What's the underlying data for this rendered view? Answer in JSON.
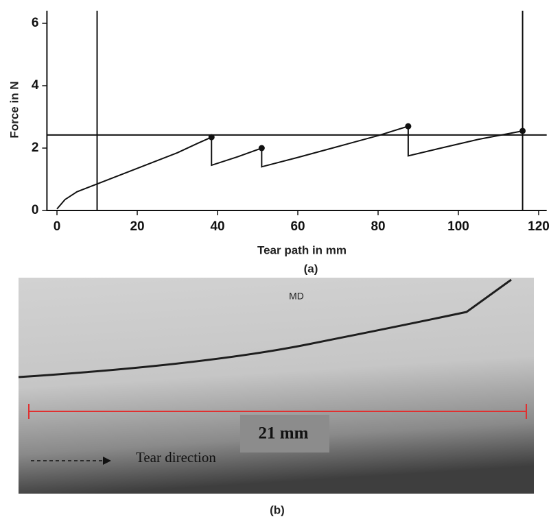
{
  "chart_data": {
    "type": "line",
    "xlabel": "Tear path in mm",
    "ylabel": "Force in N",
    "x": [
      0,
      2,
      5,
      10,
      15,
      20,
      25,
      30,
      35,
      38.5,
      38.5,
      45,
      51,
      51,
      60,
      70,
      80,
      87.5,
      87.5,
      95,
      105,
      116
    ],
    "values": [
      0.05,
      0.35,
      0.6,
      0.85,
      1.1,
      1.35,
      1.6,
      1.85,
      2.15,
      2.35,
      1.45,
      1.72,
      2.0,
      1.4,
      1.7,
      2.05,
      2.4,
      2.7,
      1.75,
      1.98,
      2.28,
      2.55
    ],
    "color": "#111111",
    "markers": {
      "x": [
        38.5,
        51,
        87.5,
        116
      ],
      "values": [
        2.35,
        2.0,
        2.7,
        2.55
      ]
    },
    "hlines": [
      2.42
    ],
    "vlines": [
      10,
      116
    ],
    "xlim": [
      -2.5,
      122
    ],
    "ylim": [
      0,
      6.4
    ],
    "xticks": [
      0,
      20,
      40,
      60,
      80,
      100,
      120
    ],
    "yticks": [
      0,
      2,
      4,
      6
    ]
  },
  "panel_a_label": "(a)",
  "photo": {
    "orientation": "MD",
    "scale": "21 mm",
    "direction": "Tear direction"
  },
  "panel_b_label": "(b)"
}
